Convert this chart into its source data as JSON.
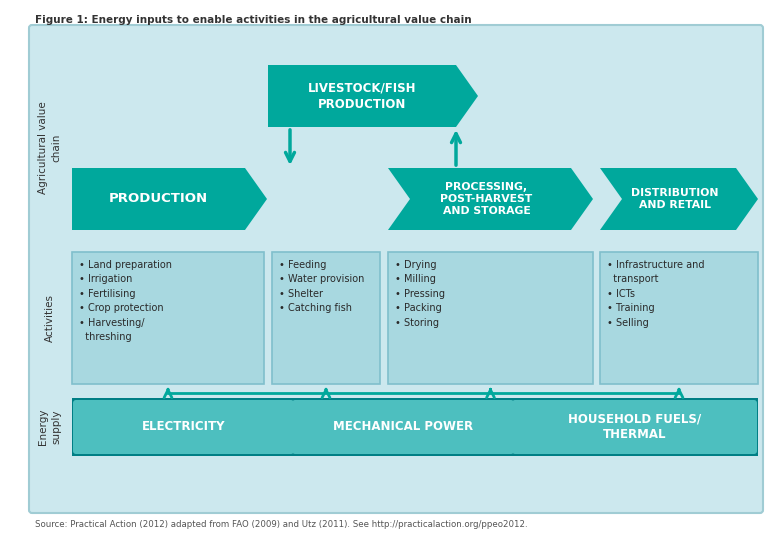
{
  "title": "Figure 1: Energy inputs to enable activities in the agricultural value chain",
  "source": "Source: Practical Action (2012) adapted from FAO (2009) and Utz (2011). See http://practicalaction.org/ppeo2012.",
  "bg_color": "#cce8ee",
  "teal": "#00a89c",
  "teal_dark": "#008080",
  "box_color": "#a8d8e0",
  "energy_outer": "#007f85",
  "energy_inner": "#4dbfbf",
  "white": "#ffffff",
  "activity_boxes": [
    "• Land preparation\n• Irrigation\n• Fertilising\n• Crop protection\n• Harvesting/\n  threshing",
    "• Feeding\n• Water provision\n• Shelter\n• Catching fish",
    "• Drying\n• Milling\n• Pressing\n• Packing\n• Storing",
    "• Infrastructure and\n  transport\n• ICTs\n• Training\n• Selling"
  ],
  "energy_labels": [
    "ELECTRICITY",
    "MECHANICAL POWER",
    "HOUSEHOLD FUELS/\nTHERMAL"
  ],
  "prod_label": "PRODUCTION",
  "live_label": "LIVESTOCK/FISH\nPRODUCTION",
  "proc_label": "PROCESSING,\nPOST-HARVEST\nAND STORAGE",
  "dist_label": "DISTRIBUTION\nAND RETAIL",
  "label_agri": "Agricultural value\nchain",
  "label_act": "Activities",
  "label_en": "Energy\nsupply"
}
